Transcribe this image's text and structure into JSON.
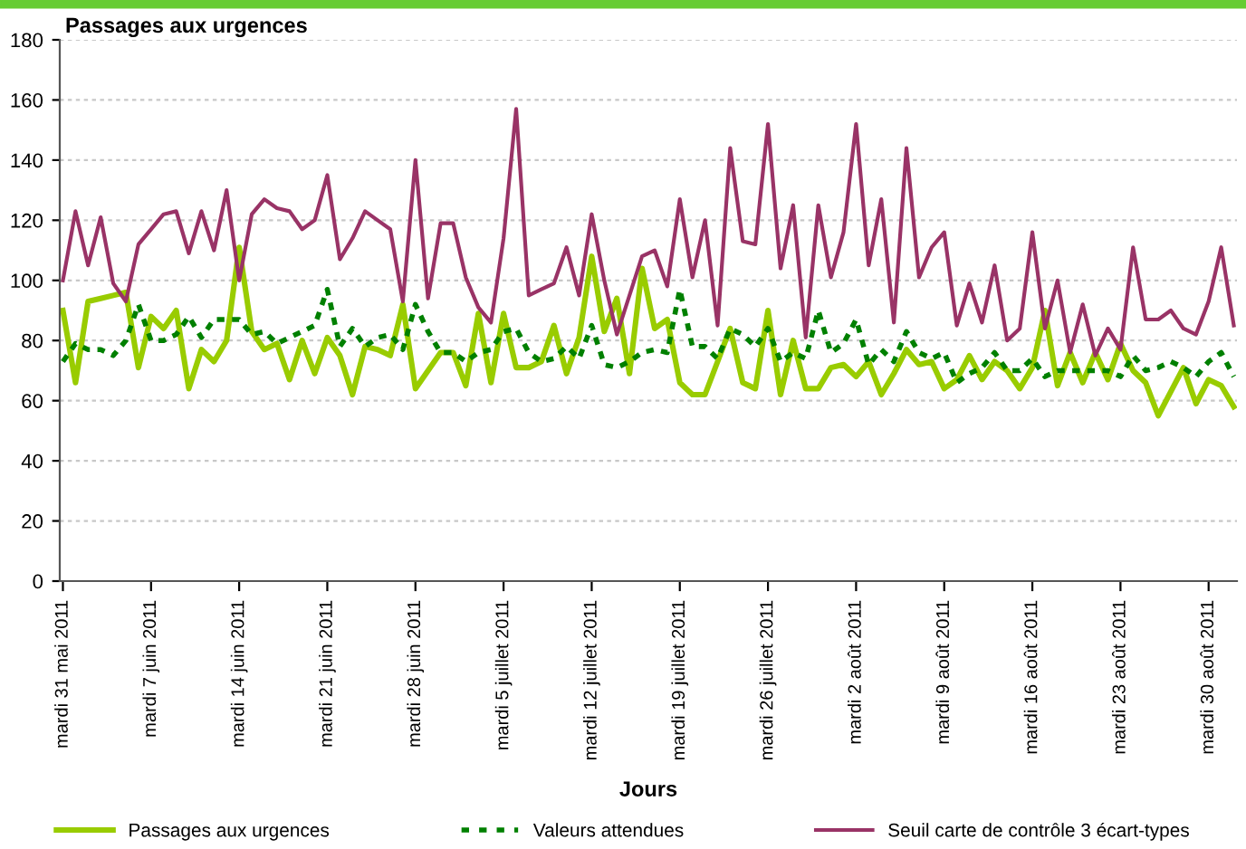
{
  "chart_data": {
    "type": "line",
    "title": "Passages aux urgences",
    "xlabel": "Jours",
    "categories": [
      "mardi 31 mai 2011",
      null,
      null,
      null,
      null,
      null,
      null,
      "mardi 7 juin 2011",
      null,
      null,
      null,
      null,
      null,
      null,
      "mardi 14 juin 2011",
      null,
      null,
      null,
      null,
      null,
      null,
      "mardi 21 juin 2011",
      null,
      null,
      null,
      null,
      null,
      null,
      "mardi 28 juin 2011",
      null,
      null,
      null,
      null,
      null,
      null,
      "mardi 5 juillet 2011",
      null,
      null,
      null,
      null,
      null,
      null,
      "mardi 12 juillet 2011",
      null,
      null,
      null,
      null,
      null,
      null,
      "mardi 19 juillet 2011",
      null,
      null,
      null,
      null,
      null,
      null,
      "mardi 26 juillet 2011",
      null,
      null,
      null,
      null,
      null,
      null,
      "mardi 2 août 2011",
      null,
      null,
      null,
      null,
      null,
      null,
      "mardi 9 août 2011",
      null,
      null,
      null,
      null,
      null,
      null,
      "mardi 16 août 2011",
      null,
      null,
      null,
      null,
      null,
      null,
      "mardi 23 août 2011",
      null,
      null,
      null,
      null,
      null,
      null,
      "mardi 30 août 2011",
      null,
      null
    ],
    "ylim": [
      0,
      180
    ],
    "yticks": [
      0,
      20,
      40,
      60,
      80,
      100,
      120,
      140,
      160,
      180
    ],
    "grid": "y",
    "legend": "bottom",
    "marker": "none",
    "series": [
      {
        "name": "Passages aux urgences",
        "color": "#99cc00",
        "line_style": "solid",
        "values": [
          90,
          66,
          93,
          94,
          95,
          96,
          71,
          88,
          84,
          90,
          64,
          77,
          73,
          80,
          111,
          83,
          77,
          79,
          67,
          80,
          69,
          81,
          75,
          62,
          78,
          77,
          75,
          92,
          64,
          70,
          76,
          76,
          65,
          89,
          66,
          89,
          71,
          71,
          73,
          85,
          69,
          81,
          108,
          83,
          94,
          69,
          104,
          84,
          87,
          66,
          62,
          62,
          73,
          84,
          66,
          64,
          90,
          62,
          80,
          64,
          64,
          71,
          72,
          68,
          73,
          62,
          69,
          77,
          72,
          73,
          64,
          67,
          75,
          67,
          73,
          70,
          64,
          71,
          90,
          65,
          76,
          66,
          76,
          67,
          79,
          70,
          66,
          55,
          63,
          71,
          59,
          67,
          65,
          58
        ]
      },
      {
        "name": "Valeurs attendues",
        "color": "#008000",
        "line_style": "dotted",
        "values": [
          73,
          79,
          77,
          77,
          75,
          80,
          92,
          80,
          80,
          82,
          88,
          81,
          87,
          87,
          87,
          82,
          83,
          79,
          81,
          83,
          85,
          97,
          78,
          84,
          78,
          81,
          82,
          77,
          92,
          83,
          76,
          76,
          73,
          76,
          77,
          83,
          84,
          76,
          73,
          74,
          78,
          74,
          85,
          72,
          71,
          73,
          76,
          77,
          76,
          97,
          78,
          78,
          74,
          84,
          82,
          78,
          84,
          73,
          76,
          74,
          90,
          76,
          79,
          87,
          72,
          77,
          73,
          83,
          76,
          74,
          76,
          66,
          69,
          71,
          76,
          70,
          70,
          74,
          68,
          70,
          70,
          70,
          70,
          70,
          68,
          75,
          70,
          71,
          73,
          71,
          68,
          73,
          76,
          68
        ]
      },
      {
        "name": "Seuil carte de contrôle 3 écart-types",
        "color": "#993366",
        "line_style": "solid",
        "values": [
          100,
          123,
          105,
          121,
          99,
          93,
          112,
          117,
          122,
          123,
          109,
          123,
          110,
          130,
          100,
          122,
          127,
          124,
          123,
          117,
          120,
          135,
          107,
          114,
          123,
          120,
          117,
          93,
          140,
          94,
          119,
          119,
          101,
          91,
          86,
          114,
          157,
          95,
          97,
          99,
          111,
          95,
          122,
          100,
          82,
          95,
          108,
          110,
          98,
          127,
          101,
          120,
          85,
          144,
          113,
          112,
          152,
          104,
          125,
          81,
          125,
          101,
          116,
          152,
          105,
          127,
          86,
          144,
          101,
          111,
          116,
          85,
          99,
          86,
          105,
          80,
          84,
          116,
          84,
          100,
          76,
          92,
          75,
          84,
          77,
          111,
          87,
          87,
          90,
          84,
          82,
          93,
          111,
          85
        ]
      }
    ]
  }
}
